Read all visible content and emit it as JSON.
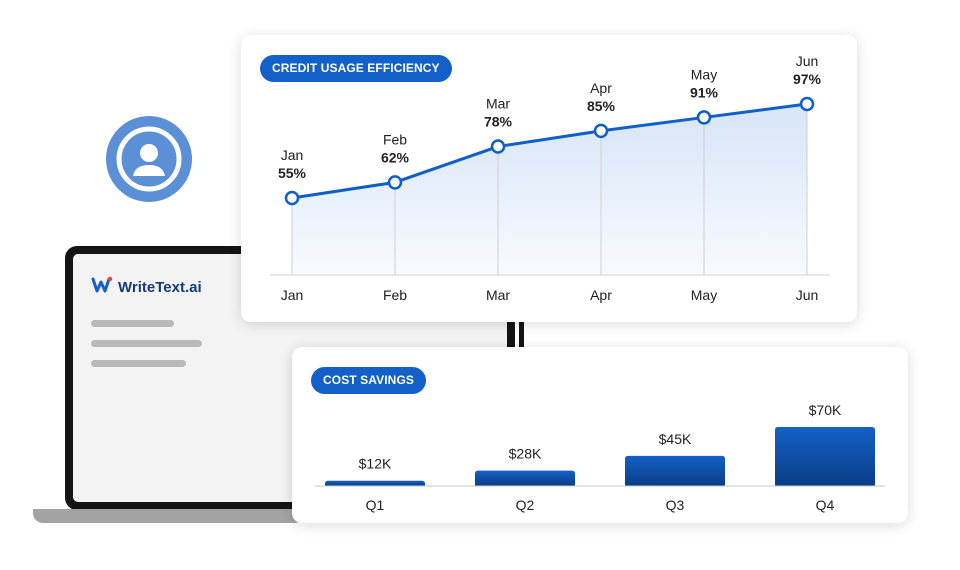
{
  "brand": {
    "name": "WriteText.ai"
  },
  "icons": {
    "avatar": "user-avatar-icon",
    "logo": "writetext-logo-icon"
  },
  "colors": {
    "accent": "#1360c8",
    "line": "#0f5fc6",
    "bar_top": "#1360c8",
    "bar_bottom": "#0b3d86"
  },
  "chart_data": [
    {
      "type": "line",
      "title": "CREDIT USAGE EFFICIENCY",
      "categories": [
        "Jan",
        "Feb",
        "Mar",
        "Apr",
        "May",
        "Jun"
      ],
      "values": [
        55,
        62,
        78,
        85,
        91,
        97
      ],
      "value_labels": [
        "55%",
        "62%",
        "78%",
        "85%",
        "91%",
        "97%"
      ],
      "xlabel": "",
      "ylabel": "",
      "grid": false
    },
    {
      "type": "bar",
      "title": "COST SAVINGS",
      "categories": [
        "Q1",
        "Q2",
        "Q3",
        "Q4"
      ],
      "values": [
        12,
        28,
        45,
        70
      ],
      "value_labels": [
        "$12K",
        "$28K",
        "$45K",
        "$70K"
      ],
      "xlabel": "",
      "ylabel": "",
      "grid": false
    }
  ]
}
